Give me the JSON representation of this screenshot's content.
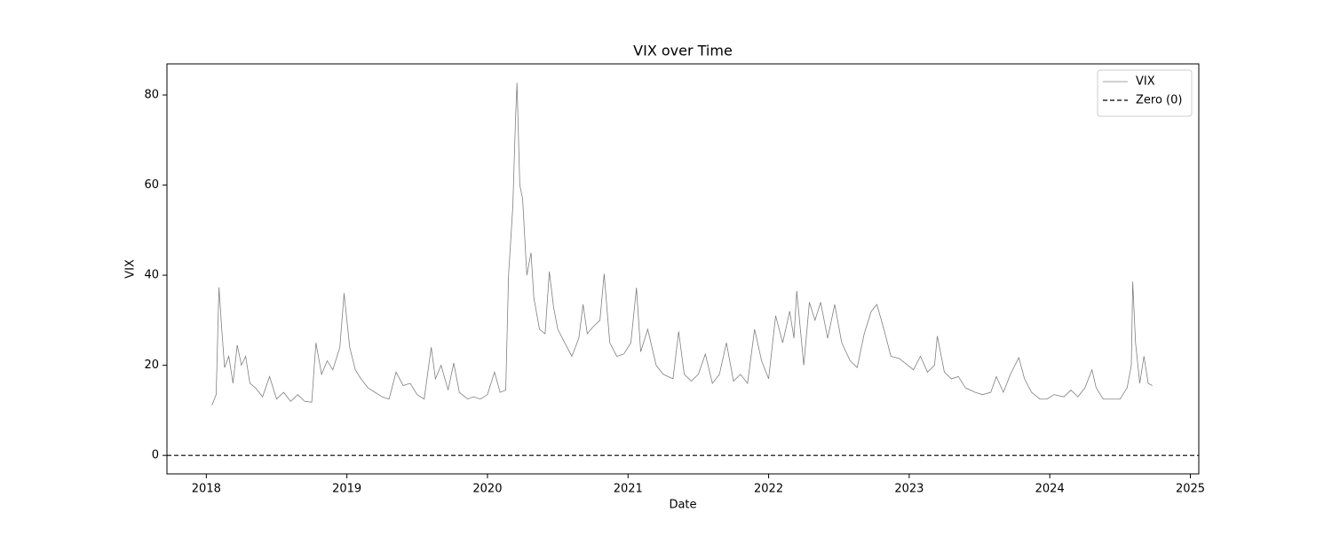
{
  "chart_data": {
    "type": "line",
    "title": "VIX over Time",
    "x_label": "Date",
    "y_label": "VIX",
    "x": [
      2018.04,
      2018.07,
      2018.09,
      2018.11,
      2018.13,
      2018.16,
      2018.19,
      2018.22,
      2018.25,
      2018.28,
      2018.31,
      2018.35,
      2018.4,
      2018.45,
      2018.5,
      2018.55,
      2018.6,
      2018.65,
      2018.7,
      2018.75,
      2018.78,
      2018.82,
      2018.86,
      2018.9,
      2018.95,
      2018.98,
      2019.02,
      2019.06,
      2019.1,
      2019.15,
      2019.2,
      2019.25,
      2019.3,
      2019.35,
      2019.4,
      2019.45,
      2019.5,
      2019.55,
      2019.6,
      2019.63,
      2019.67,
      2019.72,
      2019.76,
      2019.8,
      2019.86,
      2019.9,
      2019.95,
      2020.0,
      2020.05,
      2020.09,
      2020.13,
      2020.15,
      2020.18,
      2020.2,
      2020.21,
      2020.23,
      2020.25,
      2020.28,
      2020.31,
      2020.33,
      2020.37,
      2020.41,
      2020.44,
      2020.47,
      2020.5,
      2020.55,
      2020.6,
      2020.65,
      2020.68,
      2020.71,
      2020.75,
      2020.8,
      2020.83,
      2020.87,
      2020.92,
      2020.97,
      2021.02,
      2021.06,
      2021.09,
      2021.14,
      2021.2,
      2021.25,
      2021.32,
      2021.36,
      2021.4,
      2021.45,
      2021.5,
      2021.55,
      2021.6,
      2021.65,
      2021.7,
      2021.75,
      2021.8,
      2021.85,
      2021.9,
      2021.95,
      2022.0,
      2022.05,
      2022.1,
      2022.15,
      2022.18,
      2022.2,
      2022.25,
      2022.29,
      2022.33,
      2022.37,
      2022.42,
      2022.47,
      2022.52,
      2022.58,
      2022.63,
      2022.68,
      2022.73,
      2022.77,
      2022.82,
      2022.87,
      2022.93,
      2022.97,
      2023.03,
      2023.08,
      2023.13,
      2023.18,
      2023.2,
      2023.25,
      2023.3,
      2023.35,
      2023.4,
      2023.47,
      2023.52,
      2023.58,
      2023.62,
      2023.67,
      2023.72,
      2023.78,
      2023.82,
      2023.87,
      2023.93,
      2023.98,
      2024.03,
      2024.1,
      2024.15,
      2024.2,
      2024.25,
      2024.3,
      2024.33,
      2024.38,
      2024.45,
      2024.5,
      2024.55,
      2024.58,
      2024.59,
      2024.61,
      2024.64,
      2024.67,
      2024.7,
      2024.73
    ],
    "series": [
      {
        "name": "VIX",
        "color": "#808080",
        "values": [
          11.1,
          13.5,
          37.3,
          28,
          19.5,
          22,
          16,
          24.5,
          20,
          22,
          16,
          15,
          13,
          17.5,
          12.5,
          14,
          12,
          13.5,
          12,
          11.8,
          25,
          18,
          21,
          19,
          24,
          36,
          24,
          19,
          17,
          15,
          14,
          13,
          12.5,
          18.5,
          15.5,
          16,
          13.5,
          12.5,
          24,
          17,
          20,
          14.5,
          20.5,
          14,
          12.5,
          13,
          12.5,
          13.5,
          18.5,
          14,
          14.5,
          40,
          55,
          75,
          82.7,
          60,
          57,
          40,
          45,
          35,
          28,
          27,
          40.8,
          33,
          28,
          25,
          22,
          26,
          33.5,
          27,
          28.5,
          30,
          40.3,
          25,
          22,
          22.5,
          25,
          37.2,
          23,
          28,
          20,
          18,
          17,
          27.5,
          18,
          16.5,
          18,
          22.5,
          16,
          18,
          25,
          16.5,
          18,
          16,
          28,
          21,
          17,
          31,
          25,
          32,
          26,
          36.5,
          20,
          34,
          30,
          34,
          26,
          33.5,
          25,
          21,
          19.5,
          27,
          32,
          33.5,
          28,
          22,
          21.5,
          20.5,
          19,
          22,
          18.5,
          20,
          26.5,
          18.5,
          17,
          17.5,
          15,
          14,
          13.5,
          14,
          17.5,
          14,
          18,
          21.7,
          17,
          14,
          12.5,
          12.5,
          13.5,
          13,
          14.5,
          13,
          15,
          19,
          15,
          12.5,
          12.5,
          12.5,
          15,
          20,
          38.6,
          25,
          16,
          22,
          16,
          15.5
        ]
      }
    ],
    "hlines": [
      {
        "name": "Zero (0)",
        "value": 0,
        "color": "#000000"
      }
    ],
    "xlim": [
      2017.72,
      2025.06
    ],
    "xticks": [
      2018,
      2019,
      2020,
      2021,
      2022,
      2023,
      2024,
      2025
    ],
    "ylim": [
      -4.1,
      86.9
    ],
    "yticks": [
      0,
      20,
      40,
      60,
      80
    ],
    "legend": "upper right"
  }
}
